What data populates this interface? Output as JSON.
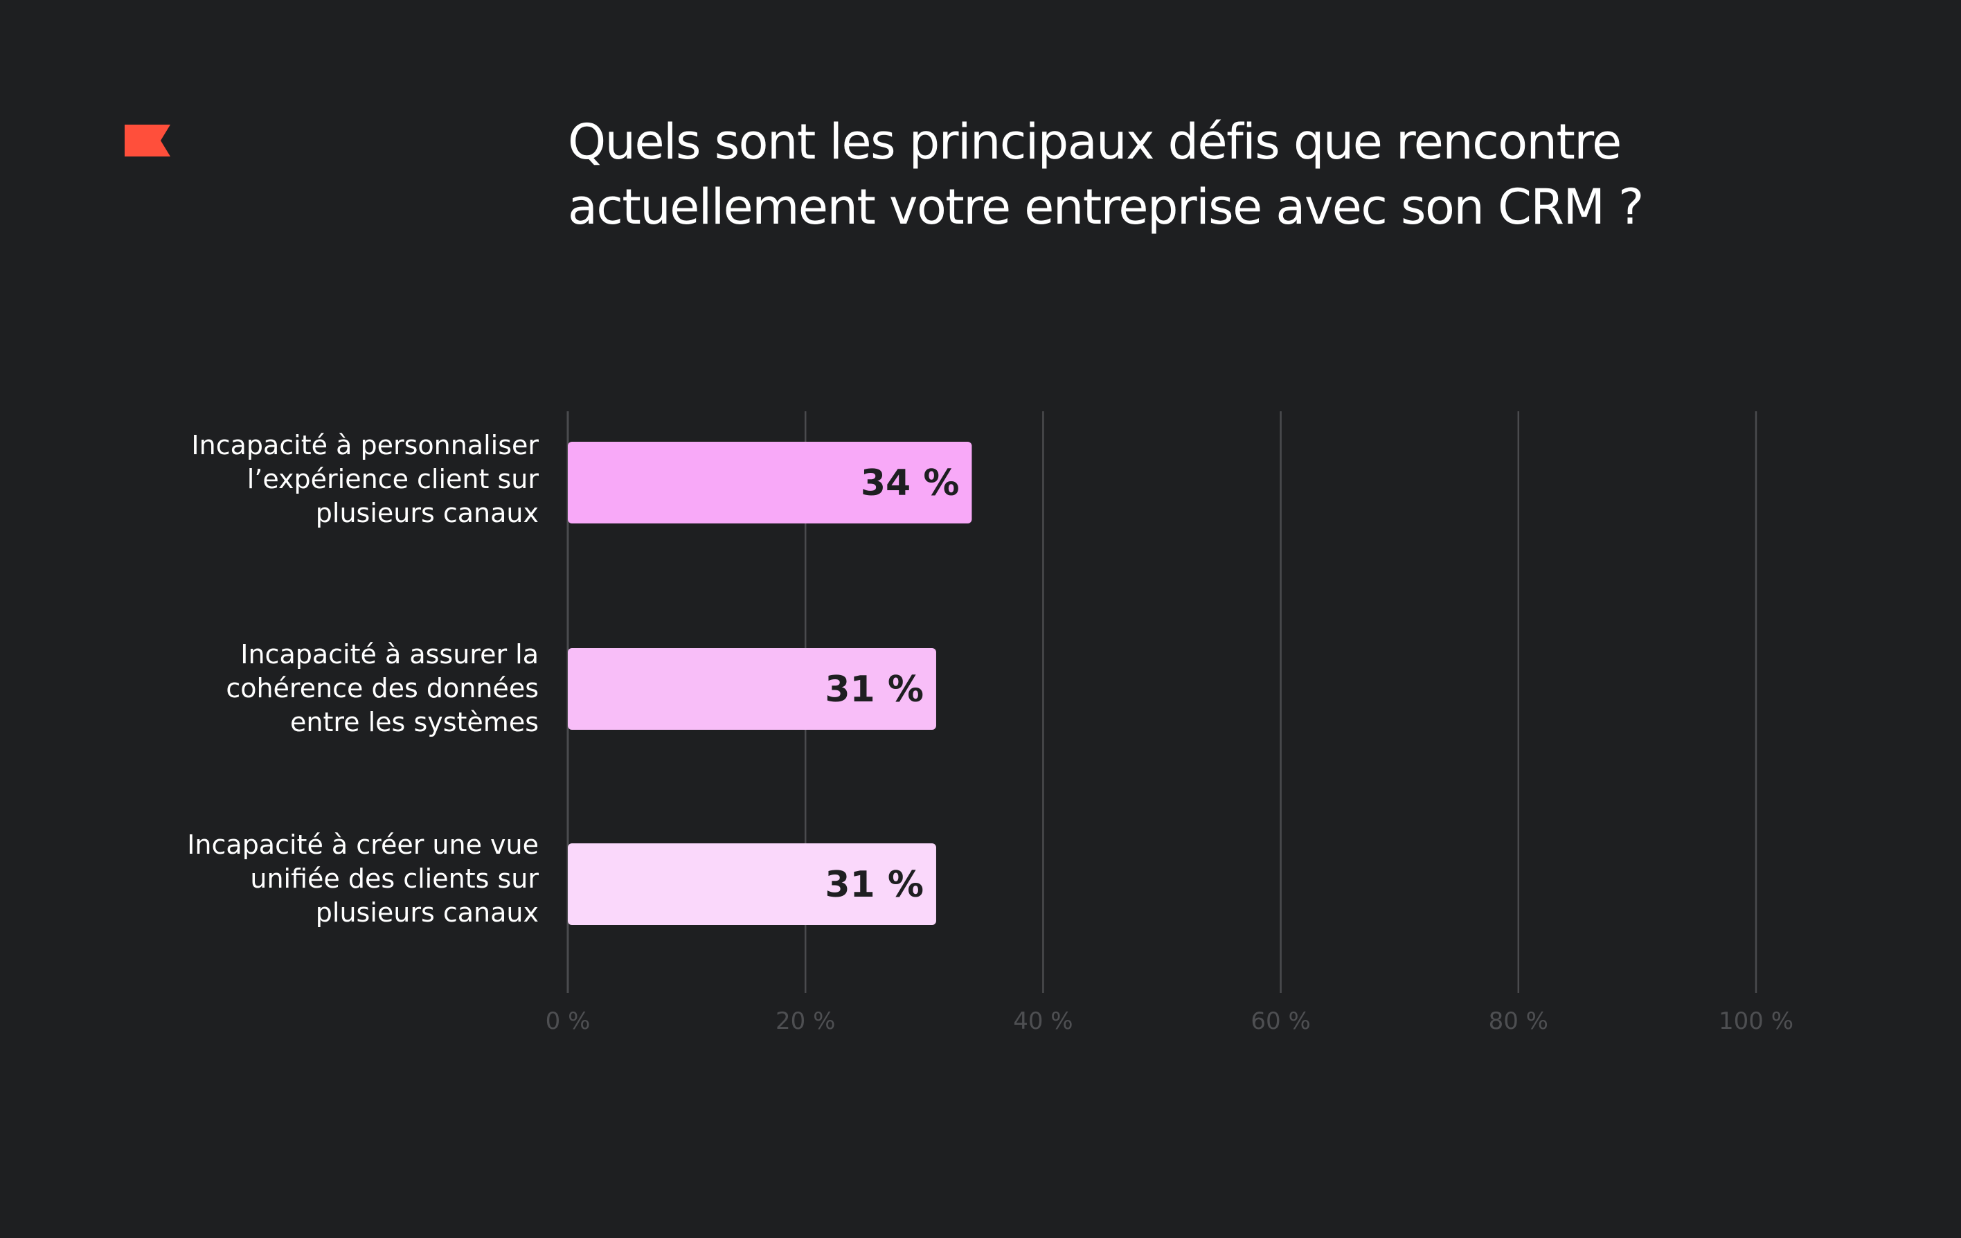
{
  "chart_data": {
    "type": "bar",
    "orientation": "horizontal",
    "title_lines": [
      "Quels sont les principaux défis que rencontre",
      "actuellement votre entreprise avec son CRM ?"
    ],
    "categories": [
      "Incapacité à personnaliser\nl’expérience client sur\nplusieurs canaux",
      "Incapacité à assurer la\ncohérence des données\nentre les systèmes",
      "Incapacité à créer une vue\nunifiée des clients sur\nplusieurs canaux"
    ],
    "values": [
      34,
      31,
      31
    ],
    "value_labels": [
      "34 %",
      "31 %",
      "31 %"
    ],
    "bar_colors": [
      "#f8a9f8",
      "#f8bef8",
      "#fad8fb"
    ],
    "xlim": [
      0,
      100
    ],
    "x_ticks": [
      0,
      20,
      40,
      60,
      80,
      100
    ],
    "x_tick_labels": [
      "0 %",
      "20 %",
      "40 %",
      "60 %",
      "80 %",
      "100 %"
    ],
    "grid": true,
    "legend": "none"
  },
  "colors": {
    "background": "#1e1f21",
    "gridline": "#4a4b4e",
    "tick_text": "#4e4f52",
    "title_text": "#ffffff",
    "accent_logo": "#ff4f3b"
  },
  "logo": {
    "icon": "flag-icon"
  }
}
